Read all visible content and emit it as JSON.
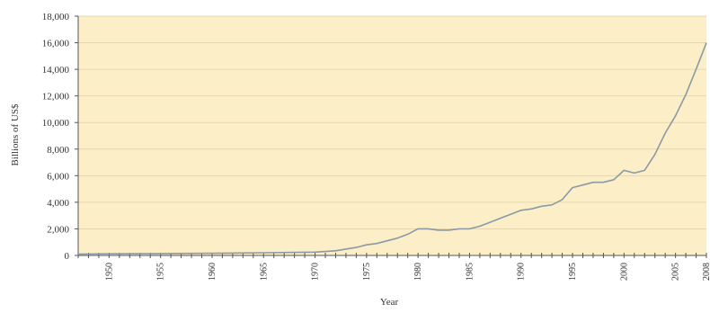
{
  "chart_data": {
    "type": "line",
    "title": "",
    "xlabel": "Year",
    "ylabel": "Billions of US$",
    "xlim": [
      1947,
      2008
    ],
    "ylim": [
      0,
      18000
    ],
    "y_ticks": [
      0,
      2000,
      4000,
      6000,
      8000,
      10000,
      12000,
      14000,
      16000,
      18000
    ],
    "y_tick_labels": [
      "0",
      "2,000",
      "4,000",
      "6,000",
      "8,000",
      "10,000",
      "12,000",
      "14,000",
      "16,000",
      "18,000"
    ],
    "x_tick_labels": [
      "1950",
      "1955",
      "1960",
      "1965",
      "1970",
      "1975",
      "1980",
      "1985",
      "1990",
      "1995",
      "2000",
      "2005",
      "2008"
    ],
    "x_tick_years": [
      1950,
      1955,
      1960,
      1965,
      1970,
      1975,
      1980,
      1985,
      1990,
      1995,
      2000,
      2005,
      2008
    ],
    "grid": true,
    "colors": {
      "plot_background": "#fcefc8",
      "line": "#8a9aa6",
      "grid": "#e6d6ad",
      "axis": "#555555"
    },
    "series": [
      {
        "x": [
          1947,
          1950,
          1955,
          1960,
          1965,
          1970,
          1972,
          1974,
          1975,
          1976,
          1977,
          1978,
          1979,
          1980,
          1981,
          1982,
          1983,
          1984,
          1985,
          1986,
          1987,
          1988,
          1989,
          1990,
          1991,
          1992,
          1993,
          1994,
          1995,
          1996,
          1997,
          1998,
          1999,
          2000,
          2001,
          2002,
          2003,
          2004,
          2005,
          2006,
          2007,
          2008
        ],
        "y": [
          100,
          120,
          140,
          160,
          200,
          250,
          350,
          600,
          800,
          900,
          1100,
          1300,
          1600,
          2000,
          2000,
          1900,
          1900,
          2000,
          2000,
          2200,
          2500,
          2800,
          3100,
          3400,
          3500,
          3700,
          3800,
          4200,
          5100,
          5300,
          5500,
          5500,
          5700,
          6400,
          6200,
          6400,
          7600,
          9200,
          10500,
          12100,
          14000,
          16000
        ]
      }
    ]
  }
}
